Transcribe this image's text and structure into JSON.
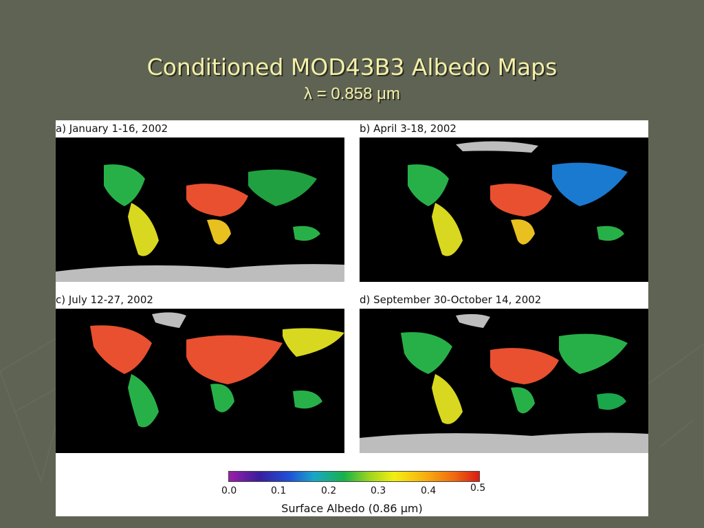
{
  "slide": {
    "title": "Conditioned MOD43B3 Albedo Maps",
    "subtitle": "λ = 0.858 μm"
  },
  "panels": [
    {
      "label": "a) January 1-16, 2002"
    },
    {
      "label": "b) April 3-18, 2002"
    },
    {
      "label": "c) July 12-27, 2002"
    },
    {
      "label": "d) September 30-October 14, 2002"
    }
  ],
  "colorbar": {
    "ticks": [
      "0.0",
      "0.1",
      "0.2",
      "0.3",
      "0.4",
      "0.5"
    ],
    "label": "Surface Albedo (0.86 µm)"
  },
  "colors": {
    "background": "#5f6353",
    "title": "#f3f0a8",
    "snow": "#bdbdbd"
  }
}
